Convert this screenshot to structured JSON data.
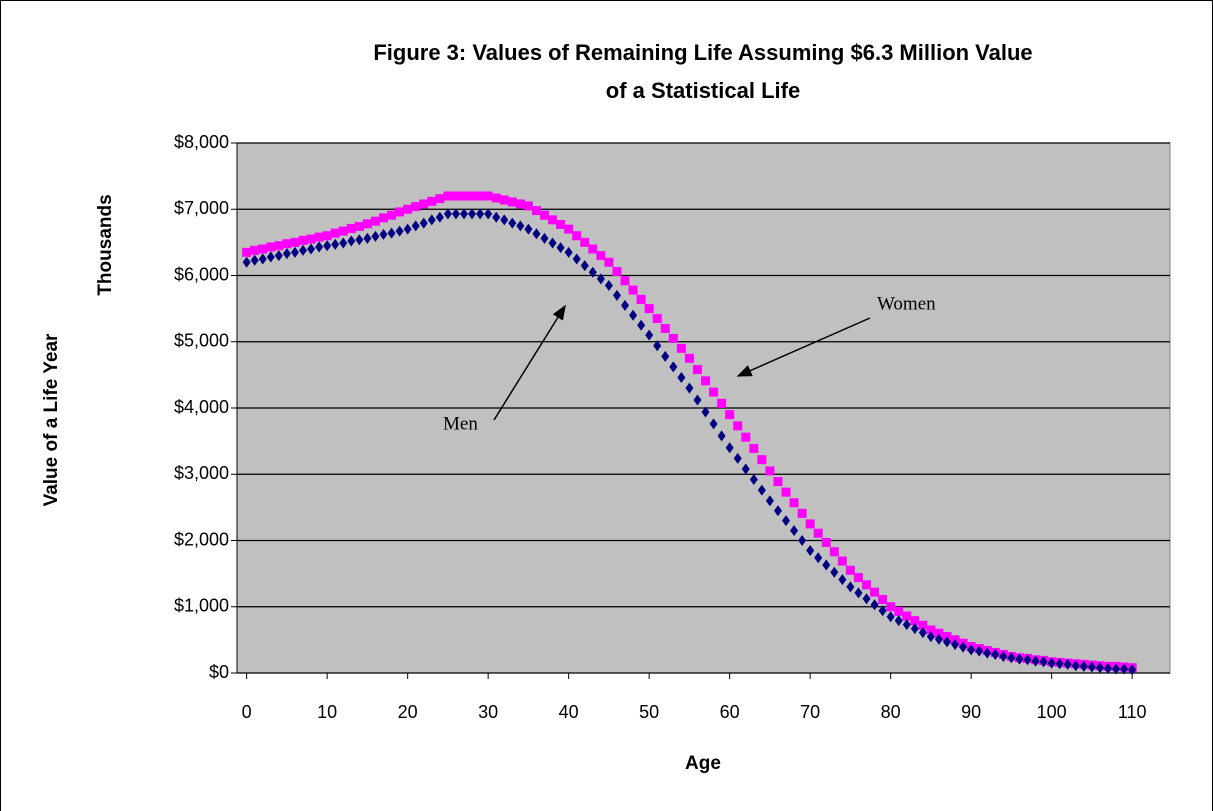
{
  "chart_data": {
    "type": "scatter",
    "title": [
      "Figure 3: Values of Remaining Life Assuming $6.3 Million Value",
      "of a Statistical Life"
    ],
    "x_label": "Age",
    "y_label": "Value of a Life Year",
    "y_unit_label": "Thousands",
    "annotations": [
      "Women",
      "Men"
    ],
    "xlim": [
      -1.2,
      114.7
    ],
    "xticks": [
      0,
      10,
      20,
      30,
      40,
      50,
      60,
      70,
      80,
      90,
      100,
      110
    ],
    "ylim": [
      0,
      8000
    ],
    "yticks": [
      {
        "value": 0,
        "label": "$0"
      },
      {
        "value": 1000,
        "label": "$1,000"
      },
      {
        "value": 2000,
        "label": "$2,000"
      },
      {
        "value": 3000,
        "label": "$3,000"
      },
      {
        "value": 4000,
        "label": "$4,000"
      },
      {
        "value": 5000,
        "label": "$5,000"
      },
      {
        "value": 6000,
        "label": "$6,000"
      },
      {
        "value": 7000,
        "label": "$7,000"
      },
      {
        "value": 8000,
        "label": "$8,000"
      }
    ],
    "grid": true,
    "plot_background": "#c0c0c0",
    "x": [
      0,
      1,
      2,
      3,
      4,
      5,
      6,
      7,
      8,
      9,
      10,
      11,
      12,
      13,
      14,
      15,
      16,
      17,
      18,
      19,
      20,
      21,
      22,
      23,
      24,
      25,
      26,
      27,
      28,
      29,
      30,
      31,
      32,
      33,
      34,
      35,
      36,
      37,
      38,
      39,
      40,
      41,
      42,
      43,
      44,
      45,
      46,
      47,
      48,
      49,
      50,
      51,
      52,
      53,
      54,
      55,
      56,
      57,
      58,
      59,
      60,
      61,
      62,
      63,
      64,
      65,
      66,
      67,
      68,
      69,
      70,
      71,
      72,
      73,
      74,
      75,
      76,
      77,
      78,
      79,
      80,
      81,
      82,
      83,
      84,
      85,
      86,
      87,
      88,
      89,
      90,
      91,
      92,
      93,
      94,
      95,
      96,
      97,
      98,
      99,
      100,
      101,
      102,
      103,
      104,
      105,
      106,
      107,
      108,
      109,
      110
    ],
    "series": [
      {
        "name": "Women",
        "color": "#ff00ff",
        "marker": "square",
        "values": [
          6350,
          6380,
          6400,
          6430,
          6450,
          6480,
          6500,
          6530,
          6550,
          6580,
          6600,
          6640,
          6670,
          6710,
          6740,
          6780,
          6820,
          6870,
          6910,
          6960,
          7000,
          7040,
          7080,
          7120,
          7160,
          7200,
          7200,
          7200,
          7200,
          7200,
          7200,
          7170,
          7140,
          7110,
          7080,
          7050,
          6980,
          6910,
          6840,
          6770,
          6700,
          6600,
          6500,
          6400,
          6300,
          6200,
          6060,
          5920,
          5780,
          5640,
          5500,
          5350,
          5200,
          5050,
          4900,
          4750,
          4580,
          4410,
          4240,
          4070,
          3900,
          3730,
          3560,
          3390,
          3220,
          3050,
          2890,
          2730,
          2570,
          2410,
          2250,
          2110,
          1970,
          1830,
          1690,
          1550,
          1440,
          1330,
          1220,
          1110,
          1000,
          930,
          860,
          790,
          720,
          650,
          600,
          550,
          500,
          450,
          400,
          370,
          340,
          310,
          280,
          250,
          230,
          220,
          200,
          190,
          170,
          160,
          150,
          140,
          130,
          120,
          110,
          100,
          100,
          90,
          80
        ]
      },
      {
        "name": "Men",
        "color": "#000080",
        "marker": "diamond",
        "values": [
          6200,
          6230,
          6250,
          6280,
          6300,
          6330,
          6350,
          6380,
          6400,
          6430,
          6450,
          6470,
          6490,
          6520,
          6540,
          6560,
          6590,
          6620,
          6640,
          6670,
          6700,
          6750,
          6790,
          6840,
          6880,
          6930,
          6930,
          6930,
          6930,
          6930,
          6930,
          6880,
          6840,
          6790,
          6750,
          6700,
          6630,
          6560,
          6490,
          6420,
          6350,
          6250,
          6150,
          6050,
          5950,
          5850,
          5700,
          5550,
          5400,
          5250,
          5100,
          4940,
          4780,
          4620,
          4460,
          4300,
          4120,
          3940,
          3760,
          3580,
          3400,
          3240,
          3080,
          2920,
          2760,
          2600,
          2450,
          2300,
          2150,
          2000,
          1850,
          1740,
          1630,
          1520,
          1410,
          1300,
          1210,
          1120,
          1030,
          940,
          850,
          790,
          730,
          670,
          610,
          550,
          510,
          470,
          430,
          390,
          350,
          330,
          300,
          280,
          250,
          230,
          210,
          200,
          180,
          170,
          150,
          140,
          130,
          110,
          100,
          90,
          80,
          70,
          60,
          60,
          50
        ]
      }
    ]
  }
}
